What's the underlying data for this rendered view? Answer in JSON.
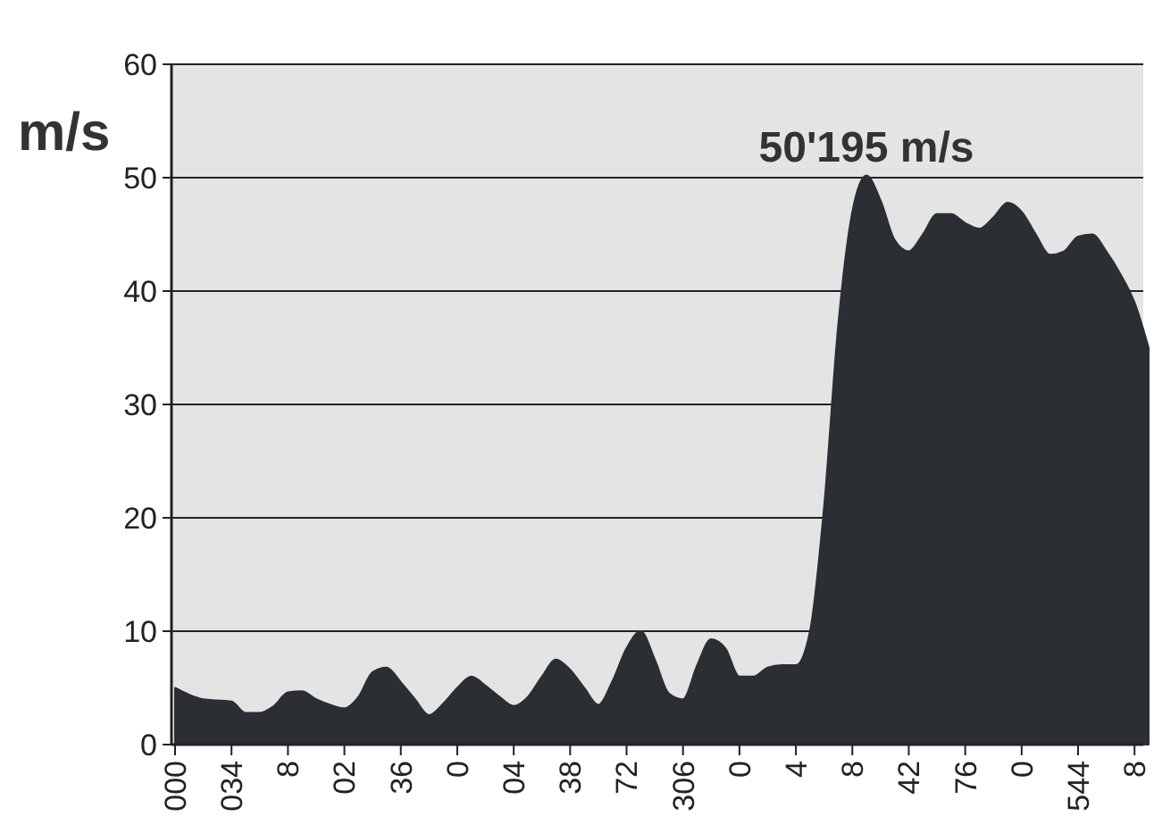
{
  "chart_data": {
    "type": "area",
    "ylabel": "m/s",
    "grid": "y",
    "annotations": [
      {
        "text": "50'195 m/s",
        "y": 50.195
      }
    ],
    "ylim": [
      0,
      60
    ],
    "yticks": [
      0,
      10,
      20,
      30,
      40,
      50,
      60
    ],
    "categories": [
      "000",
      null,
      null,
      null,
      "034",
      null,
      null,
      null,
      "8",
      null,
      null,
      null,
      "02",
      null,
      null,
      null,
      "36",
      null,
      null,
      null,
      "0",
      null,
      null,
      null,
      "04",
      null,
      null,
      null,
      "38",
      null,
      null,
      null,
      "72",
      null,
      null,
      null,
      "306",
      null,
      null,
      null,
      "0",
      null,
      null,
      null,
      "4",
      null,
      null,
      null,
      "8",
      null,
      null,
      null,
      "42",
      null,
      null,
      null,
      "76",
      null,
      null,
      null,
      "0",
      null,
      null,
      null,
      "544",
      null,
      null,
      null,
      "8",
      null
    ],
    "series": [
      {
        "color": "#2b2e33",
        "values": [
          5,
          4.4,
          4,
          3.9,
          3.8,
          2.8,
          2.8,
          3.4,
          4.6,
          4.7,
          4,
          3.5,
          3.2,
          4.2,
          6.4,
          6.8,
          5.5,
          4,
          2.6,
          3.6,
          5,
          6,
          5.2,
          4.2,
          3.4,
          4.2,
          6,
          7.5,
          6.6,
          5,
          3.5,
          5.6,
          8.5,
          10,
          7.5,
          4.5,
          4,
          7,
          9.3,
          8.5,
          6,
          6,
          6.8,
          7,
          7,
          10,
          21,
          37,
          47,
          50.2,
          48,
          44.5,
          43.5,
          45,
          46.8,
          46.8,
          46,
          45.5,
          46.5,
          47.8,
          47,
          45,
          43.2,
          43.5,
          44.8,
          45,
          43.5,
          41.5,
          39,
          35
        ]
      }
    ]
  }
}
